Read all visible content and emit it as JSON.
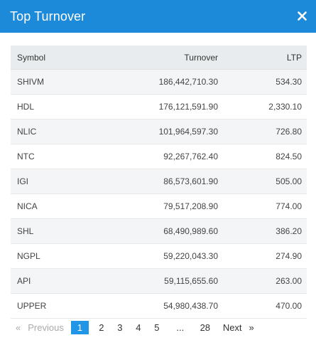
{
  "modal": {
    "title": "Top Turnover"
  },
  "table": {
    "headers": {
      "symbol": "Symbol",
      "turnover": "Turnover",
      "ltp": "LTP"
    },
    "rows": [
      {
        "symbol": "SHIVM",
        "turnover": "186,442,710.30",
        "ltp": "534.30"
      },
      {
        "symbol": "HDL",
        "turnover": "176,121,591.90",
        "ltp": "2,330.10"
      },
      {
        "symbol": "NLIC",
        "turnover": "101,964,597.30",
        "ltp": "726.80"
      },
      {
        "symbol": "NTC",
        "turnover": "92,267,762.40",
        "ltp": "824.50"
      },
      {
        "symbol": "IGI",
        "turnover": "86,573,601.90",
        "ltp": "505.00"
      },
      {
        "symbol": "NICA",
        "turnover": "79,517,208.90",
        "ltp": "774.00"
      },
      {
        "symbol": "SHL",
        "turnover": "68,490,989.60",
        "ltp": "386.20"
      },
      {
        "symbol": "NGPL",
        "turnover": "59,220,043.30",
        "ltp": "274.90"
      },
      {
        "symbol": "API",
        "turnover": "59,115,655.60",
        "ltp": "263.00"
      },
      {
        "symbol": "UPPER",
        "turnover": "54,980,438.70",
        "ltp": "470.00"
      }
    ]
  },
  "pagination": {
    "prev_arrow": "«",
    "prev_label": "Previous",
    "pages": [
      "1",
      "2",
      "3",
      "4",
      "5",
      "...",
      "28"
    ],
    "active_page": "1",
    "next_label": "Next",
    "next_arrow": "»"
  },
  "icons": {
    "close": "close-icon"
  },
  "colors": {
    "header": "#1c8ad8",
    "active_page": "#2196e6"
  }
}
